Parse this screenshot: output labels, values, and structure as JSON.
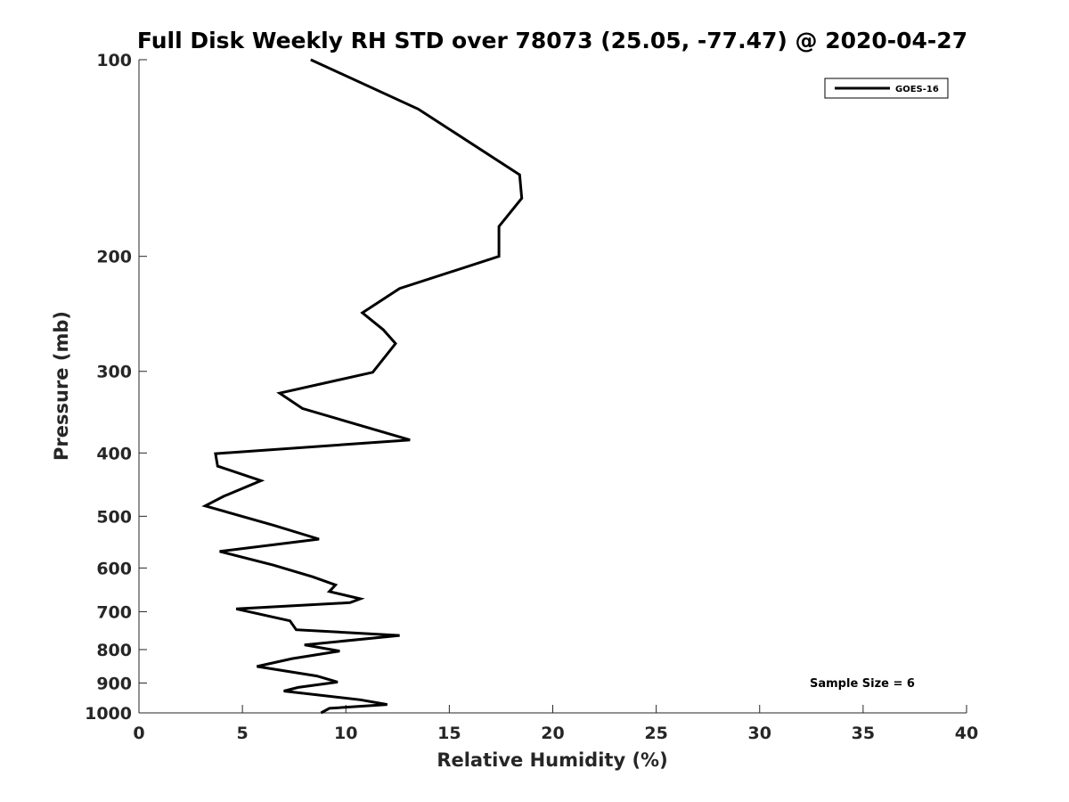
{
  "chart_data": {
    "type": "line",
    "title": "Full Disk Weekly RH STD over 78073 (25.05, -77.47) @ 2020-04-27",
    "xlabel": "Relative Humidity (%)",
    "ylabel": "Pressure (mb)",
    "xlim": [
      0,
      40
    ],
    "ylim": [
      100,
      1000
    ],
    "yscale": "log",
    "y_reversed": true,
    "xticks": [
      0,
      5,
      10,
      15,
      20,
      25,
      30,
      35,
      40
    ],
    "yticks": [
      100,
      200,
      300,
      400,
      500,
      600,
      700,
      800,
      900,
      1000
    ],
    "grid": false,
    "legend_position": "top-right",
    "annotation": "Sample Size = 6",
    "series": [
      {
        "name": "GOES-16",
        "color": "#000000",
        "x": [
          8.3,
          13.5,
          18.4,
          18.5,
          17.4,
          17.4,
          12.6,
          10.8,
          11.8,
          12.4,
          11.3,
          6.8,
          7.9,
          13.1,
          3.7,
          3.8,
          5.9,
          4.1,
          3.2,
          6.5,
          8.7,
          3.9,
          6.5,
          8.4,
          9.5,
          9.2,
          10.7,
          10.2,
          4.7,
          7.3,
          7.6,
          12.6,
          8.0,
          9.7,
          7.4,
          5.7,
          8.6,
          9.6,
          7.7,
          7.0,
          10.7,
          12.0,
          9.2,
          8.8
        ],
        "y": [
          100,
          119,
          150,
          163,
          180,
          200,
          224,
          244,
          259,
          272,
          301,
          324,
          342,
          382,
          401,
          419,
          441,
          466,
          482,
          516,
          542,
          566,
          594,
          619,
          637,
          652,
          669,
          678,
          693,
          723,
          746,
          761,
          787,
          804,
          826,
          849,
          878,
          897,
          914,
          926,
          955,
          971,
          984,
          1000
        ]
      }
    ]
  }
}
